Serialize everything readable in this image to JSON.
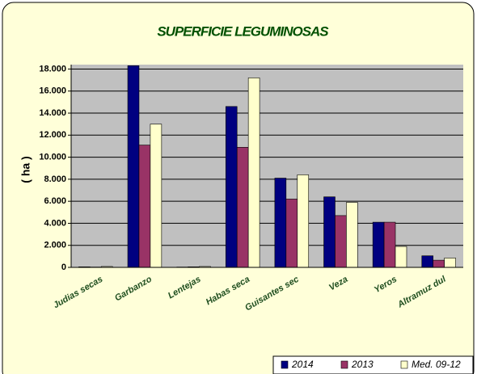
{
  "chart_data": {
    "type": "bar",
    "title": "SUPERFICIE LEGUMINOSAS",
    "y_label": "( ha )",
    "categories": [
      "Judias secas",
      "Garbanzo",
      "Lentejas",
      "Habas seca",
      "Guisantes sec",
      "Veza",
      "Yeros",
      "Altramuz dul"
    ],
    "series": [
      {
        "name": "2014",
        "color": "#000080",
        "values": [
          50,
          18300,
          30,
          14600,
          8100,
          6400,
          4100,
          1050
        ]
      },
      {
        "name": "2013",
        "color": "#993366",
        "values": [
          30,
          11100,
          50,
          10900,
          6200,
          4700,
          4100,
          650
        ]
      },
      {
        "name": "Med. 09-12",
        "color": "#ffffcc",
        "values": [
          80,
          13000,
          80,
          17200,
          8400,
          5900,
          1900,
          850
        ]
      }
    ],
    "ylim": [
      0,
      18400
    ],
    "yticks": [
      0,
      {
        "value": 2000,
        "label": "2.000"
      },
      {
        "value": 4000,
        "label": "4.000"
      },
      {
        "value": 6000,
        "label": "6.000"
      },
      {
        "value": 8000,
        "label": "8.000"
      },
      {
        "value": 10000,
        "label": "10.000"
      },
      {
        "value": 12000,
        "label": "12.000"
      },
      {
        "value": 14000,
        "label": "14.000"
      },
      {
        "value": 16000,
        "label": "16.000"
      },
      {
        "value": 18000,
        "label": "18.000"
      }
    ],
    "grid": true,
    "legend": "bottom-right"
  }
}
